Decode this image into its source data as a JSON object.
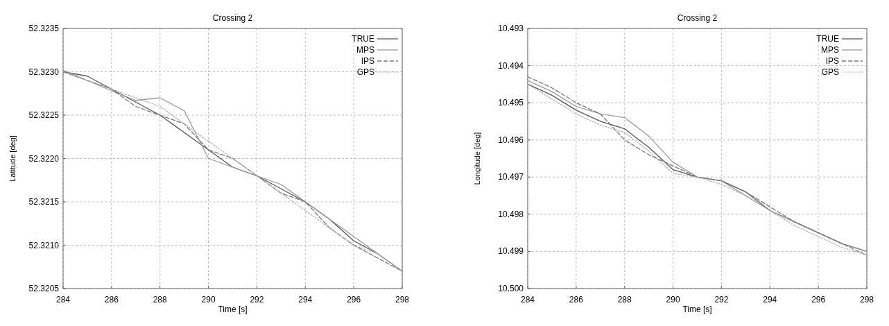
{
  "chart_data": [
    {
      "type": "line",
      "title": "Crossing 2",
      "xlabel": "Time [s]",
      "ylabel": "Latitude [deg]",
      "xlim": [
        284,
        298
      ],
      "xticks": [
        284,
        286,
        288,
        290,
        292,
        294,
        296,
        298
      ],
      "ylim": [
        52.3205,
        52.3235
      ],
      "yticks": [
        {
          "value": 52.3205,
          "label": "52.3205"
        },
        {
          "value": 52.321,
          "label": "52.3210"
        },
        {
          "value": 52.3215,
          "label": "52.3215"
        },
        {
          "value": 52.322,
          "label": "52.3220"
        },
        {
          "value": 52.3225,
          "label": "52.3225"
        },
        {
          "value": 52.323,
          "label": "52.3230"
        },
        {
          "value": 52.3235,
          "label": "52.3235"
        }
      ],
      "grid": true,
      "legend": "top right",
      "x": [
        284,
        285,
        286,
        287,
        288,
        289,
        290,
        291,
        292,
        293,
        294,
        295,
        296,
        297,
        298
      ],
      "series": [
        {
          "name": "TRUE",
          "color": "#555555",
          "line_style": "solid",
          "values": [
            52.323,
            52.32295,
            52.3228,
            52.32265,
            52.3225,
            52.3223,
            52.3221,
            52.3219,
            52.3218,
            52.32165,
            52.3215,
            52.3213,
            52.32105,
            52.3209,
            52.3207
          ]
        },
        {
          "name": "MPS",
          "color": "#999999",
          "line_style": "solid",
          "values": [
            52.32302,
            52.3229,
            52.32278,
            52.32267,
            52.3227,
            52.32255,
            52.322,
            52.3219,
            52.3218,
            52.3217,
            52.3215,
            52.3213,
            52.3211,
            52.3209,
            52.3207
          ]
        },
        {
          "name": "IPS",
          "color": "#777777",
          "line_style": "dashed",
          "values": [
            52.323,
            52.3229,
            52.3228,
            52.3226,
            52.3225,
            52.3224,
            52.3221,
            52.322,
            52.3218,
            52.3216,
            52.3215,
            52.3212,
            52.321,
            52.32085,
            52.3207
          ]
        },
        {
          "name": "GPS",
          "color": "#aaaaaa",
          "line_style": "dotted",
          "values": [
            52.323,
            52.3229,
            52.3228,
            52.3227,
            52.3226,
            52.3224,
            52.3222,
            52.322,
            52.3218,
            52.3216,
            52.3214,
            52.3212,
            52.321,
            52.3209,
            52.3207
          ]
        }
      ]
    },
    {
      "type": "line",
      "title": "Crossing 2",
      "xlabel": "Time [s]",
      "ylabel": "Longitude [deg]",
      "xlim": [
        284,
        298
      ],
      "xticks": [
        284,
        286,
        288,
        290,
        292,
        294,
        296,
        298
      ],
      "ylim": [
        10.5,
        10.493
      ],
      "yticks": [
        {
          "value": 10.5,
          "label": "10.500"
        },
        10.499,
        10.498,
        10.497,
        10.496,
        10.495,
        10.494,
        10.493
      ],
      "grid": true,
      "legend": "top right",
      "x": [
        284,
        285,
        286,
        287,
        288,
        289,
        290,
        291,
        292,
        293,
        294,
        295,
        296,
        297,
        298
      ],
      "series": [
        {
          "name": "TRUE",
          "color": "#555555",
          "line_style": "solid",
          "values": [
            10.4945,
            10.4948,
            10.4952,
            10.4955,
            10.4957,
            10.4962,
            10.4968,
            10.497,
            10.4971,
            10.4974,
            10.4979,
            10.4982,
            10.4985,
            10.4988,
            10.499
          ]
        },
        {
          "name": "MPS",
          "color": "#999999",
          "line_style": "solid",
          "values": [
            10.4944,
            10.4947,
            10.4951,
            10.4953,
            10.4954,
            10.4959,
            10.4966,
            10.497,
            10.4971,
            10.4975,
            10.4979,
            10.4982,
            10.4985,
            10.4988,
            10.499
          ]
        },
        {
          "name": "IPS",
          "color": "#777777",
          "line_style": "dashed",
          "values": [
            10.4943,
            10.4946,
            10.495,
            10.4953,
            10.496,
            10.4964,
            10.4967,
            10.497,
            10.4971,
            10.4974,
            10.4978,
            10.4982,
            10.4985,
            10.4988,
            10.4991
          ]
        },
        {
          "name": "GPS",
          "color": "#aaaaaa",
          "line_style": "dotted",
          "values": [
            10.4945,
            10.4949,
            10.4953,
            10.4956,
            10.4958,
            10.4963,
            10.4969,
            10.497,
            10.4972,
            10.4975,
            10.4979,
            10.4983,
            10.4986,
            10.4989,
            10.4991
          ]
        }
      ]
    }
  ]
}
